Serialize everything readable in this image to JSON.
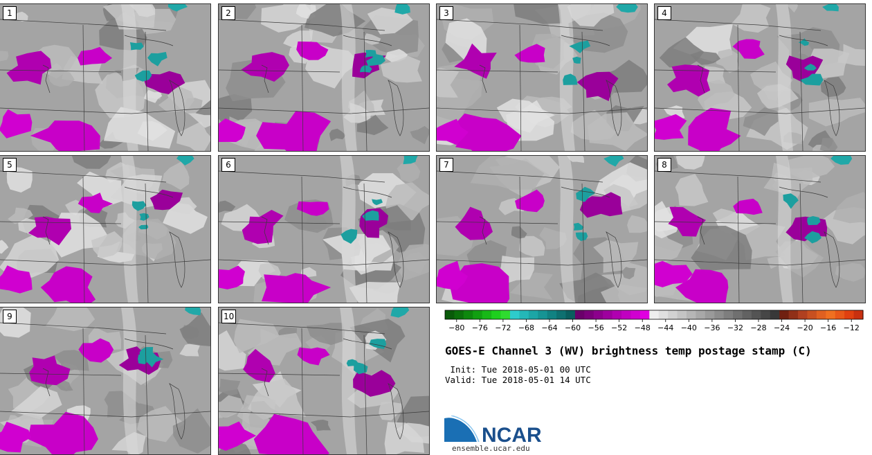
{
  "figure": {
    "title": "GOES-E Channel 3 (WV) brightness temp postage stamp (C)",
    "init_label": " Init: Tue 2018-05-01 00 UTC",
    "valid_label": "Valid: Tue 2018-05-01 14 UTC"
  },
  "panels": [
    "1",
    "2",
    "3",
    "4",
    "5",
    "6",
    "7",
    "8",
    "9",
    "10"
  ],
  "colorbar": {
    "tick_labels": [
      "-80",
      "-76",
      "-72",
      "-68",
      "-64",
      "-60",
      "-56",
      "-52",
      "-48",
      "-44",
      "-40",
      "-36",
      "-32",
      "-28",
      "-24",
      "-20",
      "-16",
      "-12"
    ],
    "colors": [
      "#0a5a0a",
      "#0b700b",
      "#0d880d",
      "#11a011",
      "#17b817",
      "#1ed01e",
      "#2fdc2f",
      "#2ecccc",
      "#24b8b8",
      "#1ca6a6",
      "#169494",
      "#118282",
      "#0e7070",
      "#0a5e5e",
      "#6a006a",
      "#7a007a",
      "#8c008c",
      "#9e009e",
      "#b000b0",
      "#c000c0",
      "#d000d0",
      "#e000e0",
      "#eeeeee",
      "#e0e0e0",
      "#d2d2d2",
      "#c4c4c4",
      "#b6b6b6",
      "#a8a8a8",
      "#9a9a9a",
      "#8c8c8c",
      "#7e7e7e",
      "#707070",
      "#626262",
      "#545454",
      "#464646",
      "#383838",
      "#702010",
      "#903018",
      "#b04020",
      "#c85020",
      "#e06020",
      "#f07020",
      "#e85818",
      "#e04010",
      "#c83010"
    ]
  },
  "logo": {
    "name": "NCAR",
    "url": "ensemble.ucar.edu"
  }
}
